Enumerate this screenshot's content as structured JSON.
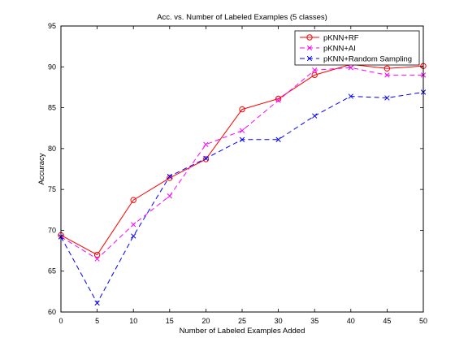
{
  "chart_data": {
    "type": "line",
    "title": "Acc. vs. Number of Labeled Examples (5 classes)",
    "xlabel": "Number of Labeled Examples Added",
    "ylabel": "Accuracy",
    "xlim": [
      0,
      50
    ],
    "ylim": [
      60,
      95
    ],
    "xticks": [
      0,
      5,
      10,
      15,
      20,
      25,
      30,
      35,
      40,
      45,
      50
    ],
    "yticks": [
      60,
      65,
      70,
      75,
      80,
      85,
      90,
      95
    ],
    "grid": false,
    "legend_position": "top-right",
    "x": [
      0,
      5,
      10,
      15,
      20,
      25,
      30,
      35,
      40,
      45,
      50
    ],
    "series": [
      {
        "name": "pKNN+RF",
        "color": "#ff0000",
        "marker": "circle",
        "dash": "solid",
        "values": [
          69.4,
          67.0,
          73.7,
          76.4,
          78.7,
          84.8,
          86.1,
          89.0,
          90.3,
          89.8,
          90.1
        ]
      },
      {
        "name": "pKNN+AI",
        "color": "#ff00ff",
        "marker": "x",
        "dash": "dashed",
        "values": [
          69.2,
          66.5,
          70.7,
          74.2,
          80.5,
          82.2,
          85.9,
          89.6,
          89.9,
          89.0,
          89.0
        ]
      },
      {
        "name": "pKNN+Random Sampling",
        "color": "#0000ff",
        "marker": "x",
        "dash": "dashed",
        "values": [
          69.2,
          61.1,
          69.3,
          76.6,
          78.8,
          81.1,
          81.1,
          84.0,
          86.4,
          86.2,
          86.9
        ]
      }
    ]
  }
}
